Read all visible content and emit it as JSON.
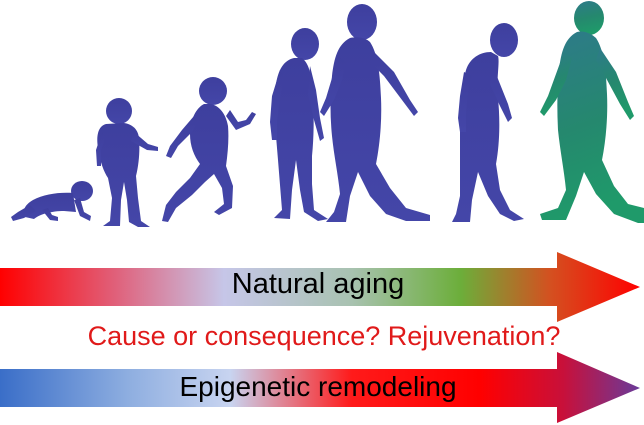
{
  "arrows": {
    "natural_aging": {
      "label": "Natural aging",
      "gradient": [
        "#ff0000",
        "#e0607a",
        "#c6c6e8",
        "#a8c2b0",
        "#6cae3a",
        "#d45020",
        "#ff0000"
      ]
    },
    "epigenetic_remodeling": {
      "label": "Epigenetic remodeling",
      "gradient": [
        "#3a6ec8",
        "#8eaee0",
        "#c8d4f0",
        "#ff1a1a",
        "#ff0000",
        "#c8103a",
        "#6a3a9a"
      ]
    }
  },
  "question": {
    "text": "Cause or consequence? Rejuvenation?",
    "color": "#e01a1a"
  },
  "figures": {
    "names": [
      "infant",
      "toddler",
      "child",
      "teen",
      "adult",
      "elderly",
      "rejuvenated"
    ],
    "colors": {
      "human": "#3e3f9e",
      "rejuvenated_top": "#2e7a8a",
      "rejuvenated_bottom": "#1f9a6a"
    }
  }
}
